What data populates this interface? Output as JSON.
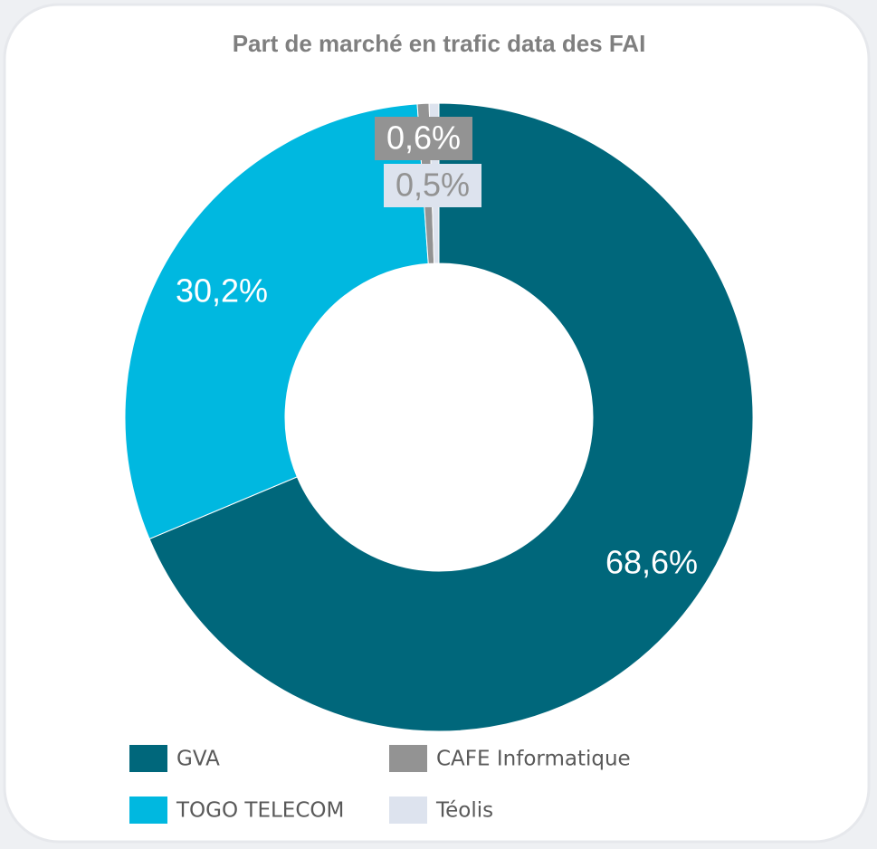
{
  "chart_data": {
    "type": "donut",
    "title": "Part de marché en trafic data des FAI",
    "categories": [
      "GVA",
      "TOGO TELECOM",
      "CAFE Informatique",
      "Téolis"
    ],
    "values": [
      68.6,
      30.2,
      0.6,
      0.5
    ],
    "value_labels": [
      "68,6%",
      "30,2%",
      "0,6%",
      "0,5%"
    ],
    "colors": [
      "#00677b",
      "#00b8e0",
      "#939393",
      "#dde3ee"
    ]
  }
}
